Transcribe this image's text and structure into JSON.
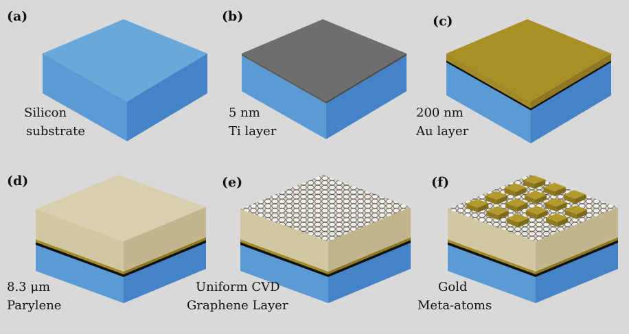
{
  "panels": [
    {
      "label": "(a)",
      "caption": [
        "Silicon",
        "substrate"
      ]
    },
    {
      "label": "(b)",
      "caption": [
        "5 nm",
        "Ti layer"
      ]
    },
    {
      "label": "(c)",
      "caption": [
        "200 nm",
        "Au layer"
      ]
    },
    {
      "label": "(d)",
      "caption": [
        "8.3 μm",
        "Parylene"
      ]
    },
    {
      "label": "(e)",
      "caption": [
        "Uniform CVD",
        "Graphene Layer"
      ]
    },
    {
      "label": "(f)",
      "caption": [
        "Gold",
        "Meta-atoms"
      ]
    }
  ]
}
